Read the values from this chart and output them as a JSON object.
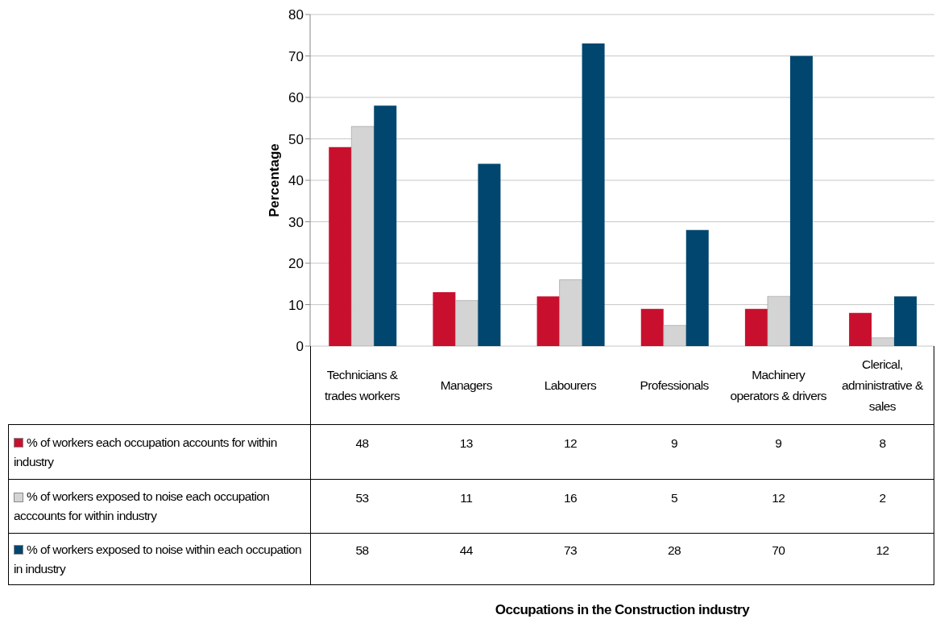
{
  "chart_data": {
    "type": "bar",
    "categories": [
      "Technicians & trades workers",
      "Managers",
      "Labourers",
      "Professionals",
      "Machinery operators & drivers",
      "Clerical, administrative & sales"
    ],
    "series": [
      {
        "name": "% of workers each occupation accounts for within industry",
        "color": "#c8102e",
        "values": [
          48,
          13,
          12,
          9,
          9,
          8
        ]
      },
      {
        "name": "% of workers exposed to noise each occupation acccounts for within industry",
        "color": "#d4d4d4",
        "values": [
          53,
          11,
          16,
          5,
          12,
          2
        ]
      },
      {
        "name": "% of workers exposed to noise within each occupation in industry",
        "color": "#00466e",
        "values": [
          58,
          44,
          73,
          28,
          70,
          12
        ]
      }
    ],
    "ylabel": "Percentage",
    "annotations": [
      "Occupations in the Construction industry"
    ],
    "ylim": [
      0,
      80
    ],
    "yticks": [
      0,
      10,
      20,
      30,
      40,
      50,
      60,
      70,
      80
    ],
    "grid": "y",
    "legend": "bottom left",
    "data_labels": true
  }
}
